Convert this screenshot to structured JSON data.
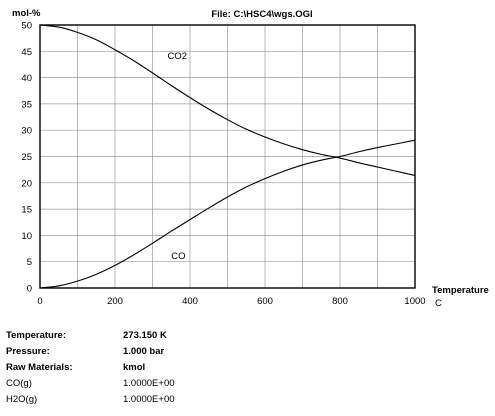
{
  "chart_data": {
    "type": "line",
    "title": "File: C:\\HSC4\\wgs.OGI",
    "ylabel": "mol-%",
    "xlabel": "Temperature",
    "xunit": "C",
    "xlim": [
      0,
      1000
    ],
    "ylim": [
      0,
      50
    ],
    "x_ticks": [
      0,
      200,
      400,
      600,
      800,
      1000
    ],
    "y_ticks": [
      0,
      5,
      10,
      15,
      20,
      25,
      30,
      35,
      40,
      45,
      50
    ],
    "grid": true,
    "series": [
      {
        "name": "CO2",
        "x": [
          0,
          50,
          100,
          150,
          200,
          250,
          300,
          350,
          400,
          450,
          500,
          550,
          600,
          650,
          700,
          750,
          800,
          850,
          900,
          950,
          1000
        ],
        "y": [
          50,
          49.6,
          48.6,
          47.2,
          45.3,
          43.2,
          40.9,
          38.5,
          36.2,
          34.0,
          32.0,
          30.2,
          28.7,
          27.4,
          26.3,
          25.4,
          24.7,
          23.8,
          23.0,
          22.2,
          21.4
        ]
      },
      {
        "name": "CO",
        "x": [
          0,
          50,
          100,
          150,
          200,
          250,
          300,
          350,
          400,
          450,
          500,
          550,
          600,
          650,
          700,
          750,
          800,
          850,
          900,
          950,
          1000
        ],
        "y": [
          0,
          0.4,
          1.3,
          2.6,
          4.3,
          6.3,
          8.5,
          10.8,
          13.0,
          15.2,
          17.3,
          19.2,
          20.8,
          22.2,
          23.4,
          24.3,
          25.0,
          25.9,
          26.7,
          27.4,
          28.1
        ]
      }
    ]
  },
  "info": {
    "rows": [
      {
        "label": "Temperature:",
        "value": "273.150 K",
        "bold": true
      },
      {
        "label": "Pressure:",
        "value": "1.000 bar",
        "bold": true
      },
      {
        "label": "Raw Materials:",
        "value": "kmol",
        "bold": true
      },
      {
        "label": "CO(g)",
        "value": "1.0000E+00",
        "bold": false
      },
      {
        "label": "H2O(g)",
        "value": "1.0000E+00",
        "bold": false
      }
    ]
  }
}
